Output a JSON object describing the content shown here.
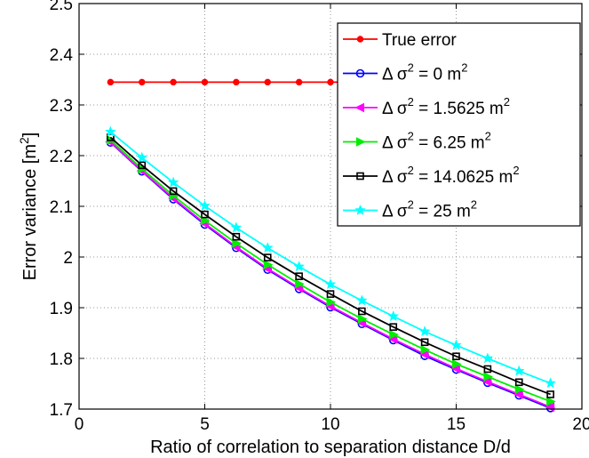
{
  "chart_data": {
    "type": "line",
    "title": "",
    "xlabel": "Ratio of correlation to separation distance D/d",
    "ylabel_main": "Error variance [m",
    "ylabel_sup": "2",
    "ylabel_tail": "]",
    "xlim": [
      0,
      20
    ],
    "ylim": [
      1.7,
      2.5
    ],
    "xticks": [
      "0",
      "5",
      "10",
      "15",
      "20"
    ],
    "yticks": [
      "1.7",
      "1.8",
      "1.9",
      "2",
      "2.1",
      "2.2",
      "2.3",
      "2.4",
      "2.5"
    ],
    "grid": "dotted",
    "legend_position": "top-right",
    "x": [
      1.25,
      2.5,
      3.75,
      5.0,
      6.25,
      7.5,
      8.75,
      10.0,
      11.25,
      12.5,
      13.75,
      15.0,
      16.25,
      17.5,
      18.75
    ],
    "series": [
      {
        "name": "True error",
        "legend": {
          "pre": "True error",
          "sup": "",
          "post": ""
        },
        "color": "#ff0000",
        "marker": "dot",
        "values": [
          2.345,
          2.345,
          2.345,
          2.345,
          2.345,
          2.345,
          2.345,
          2.345,
          2.345,
          2.345,
          2.345,
          2.345,
          2.345,
          2.345,
          2.345
        ]
      },
      {
        "name": "Δ σ2 = 0 m2",
        "legend": {
          "pre": "Δ σ",
          "sup": "2",
          "mid": " = 0 m",
          "sup2": "2"
        },
        "color": "#0000ff",
        "marker": "circle",
        "values": [
          2.226,
          2.169,
          2.114,
          2.064,
          2.018,
          1.975,
          1.937,
          1.901,
          1.868,
          1.836,
          1.805,
          1.778,
          1.752,
          1.727,
          1.702
        ]
      },
      {
        "name": "Δ σ2 = 1.5625 m2",
        "legend": {
          "pre": "Δ σ",
          "sup": "2",
          "mid": " = 1.5625 m",
          "sup2": "2"
        },
        "color": "#ff00ff",
        "marker": "triangle-left",
        "values": [
          2.227,
          2.17,
          2.116,
          2.066,
          2.02,
          1.977,
          1.939,
          1.903,
          1.87,
          1.838,
          1.808,
          1.78,
          1.754,
          1.729,
          1.704
        ]
      },
      {
        "name": "Δ σ2 = 6.25 m2",
        "legend": {
          "pre": "Δ σ",
          "sup": "2",
          "mid": " = 6.25 m",
          "sup2": "2"
        },
        "color": "#00ee00",
        "marker": "triangle-right",
        "values": [
          2.231,
          2.174,
          2.121,
          2.072,
          2.027,
          1.985,
          1.947,
          1.911,
          1.878,
          1.847,
          1.817,
          1.789,
          1.764,
          1.739,
          1.715
        ]
      },
      {
        "name": "Δ σ2 = 14.0625 m2",
        "legend": {
          "pre": "Δ σ",
          "sup": "2",
          "mid": " = 14.0625 m",
          "sup2": "2"
        },
        "color": "#000000",
        "marker": "square",
        "values": [
          2.236,
          2.181,
          2.13,
          2.084,
          2.04,
          1.999,
          1.962,
          1.927,
          1.893,
          1.862,
          1.832,
          1.804,
          1.779,
          1.753,
          1.729
        ]
      },
      {
        "name": "Δ σ2 = 25 m2",
        "legend": {
          "pre": "Δ σ",
          "sup": "2",
          "mid": " = 25 m",
          "sup2": "2"
        },
        "color": "#00ffff",
        "marker": "star",
        "values": [
          2.247,
          2.196,
          2.147,
          2.101,
          2.058,
          2.018,
          1.981,
          1.946,
          1.914,
          1.883,
          1.853,
          1.826,
          1.8,
          1.775,
          1.751
        ]
      }
    ]
  }
}
